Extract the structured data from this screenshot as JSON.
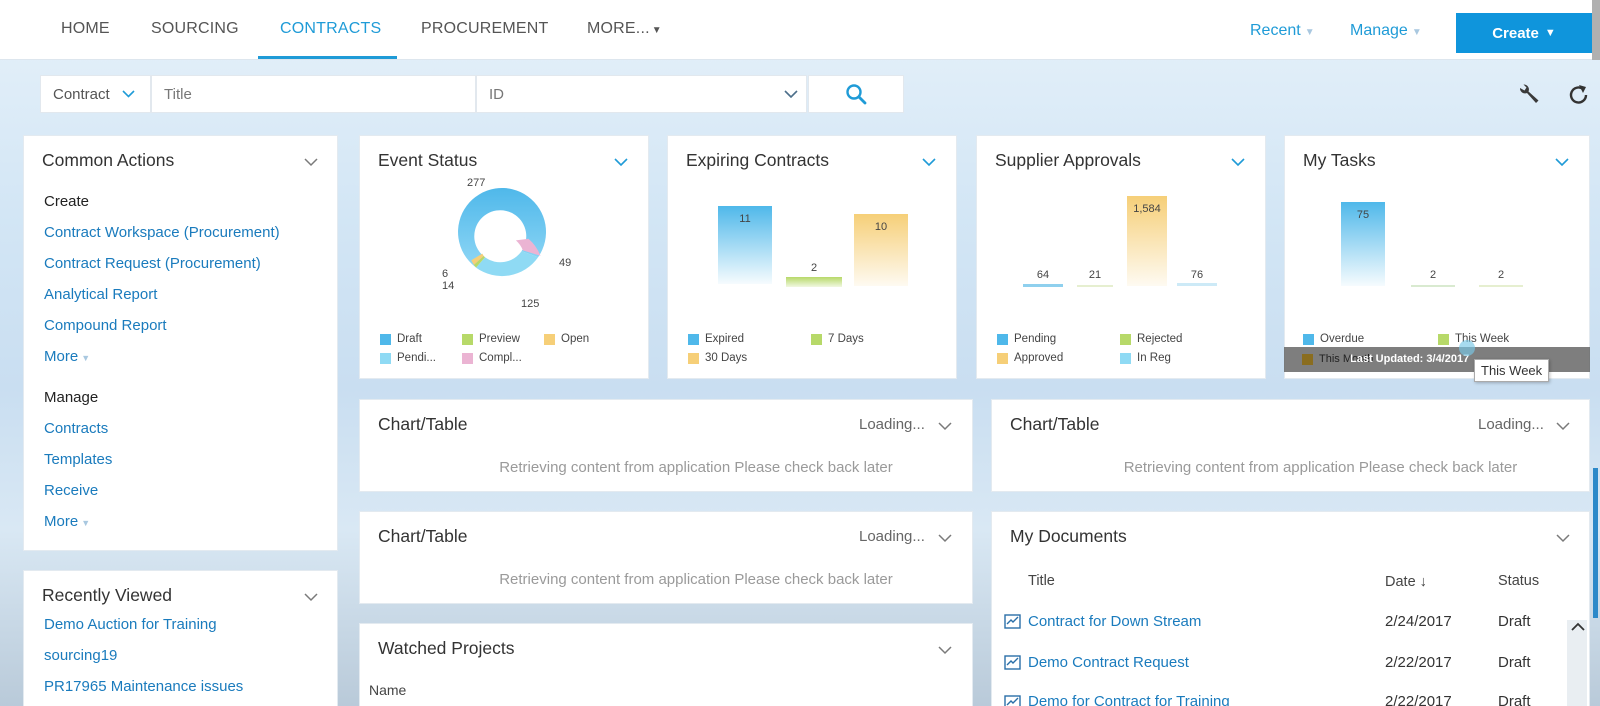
{
  "nav": {
    "tabs": [
      {
        "label": "HOME"
      },
      {
        "label": "SOURCING"
      },
      {
        "label": "CONTRACTS"
      },
      {
        "label": "PROCUREMENT"
      },
      {
        "label": "MORE..."
      }
    ],
    "active_tab": "CONTRACTS",
    "recent_label": "Recent",
    "manage_label": "Manage",
    "create_label": "Create",
    "accent_color": "#1f9bd7"
  },
  "search": {
    "type_value": "Contract",
    "title_placeholder": "Title",
    "id_placeholder": "ID",
    "search_icon": "search-icon"
  },
  "tools": {
    "wrench_icon": "wrench-icon",
    "refresh_icon": "refresh-icon"
  },
  "common_actions": {
    "title": "Common Actions",
    "create_heading": "Create",
    "create_items": [
      "Contract Workspace (Procurement)",
      "Contract Request (Procurement)",
      "Analytical Report",
      "Compound Report",
      "More"
    ],
    "manage_heading": "Manage",
    "manage_items": [
      "Contracts",
      "Templates",
      "Receive",
      "More"
    ]
  },
  "recently_viewed": {
    "title": "Recently Viewed",
    "items": [
      "Demo Auction for Training",
      "sourcing19",
      "PR17965 Maintenance issues"
    ]
  },
  "event_status": {
    "title": "Event Status",
    "labels": {
      "top": "277",
      "right": "49",
      "bottom": "125",
      "left1": "6",
      "left2": "14"
    },
    "legend": [
      "Draft",
      "Preview",
      "Open",
      "Pendi...",
      "Compl..."
    ],
    "colors": [
      "#4fb8ea",
      "#b7d969",
      "#f6cf78",
      "#8fdaf4",
      "#ebb4d3"
    ]
  },
  "expiring_contracts": {
    "title": "Expiring Contracts",
    "values": [
      "11",
      "2",
      "10"
    ],
    "legend": [
      "Expired",
      "7 Days",
      "30 Days"
    ],
    "colors": [
      "#4fb8ea",
      "#b7d969",
      "#f6cf78"
    ]
  },
  "supplier_approvals": {
    "title": "Supplier Approvals",
    "values": [
      "64",
      "21",
      "1,584",
      "76"
    ],
    "legend": [
      "Pending",
      "Rejected",
      "Approved",
      "In Reg"
    ],
    "colors": [
      "#4fb8ea",
      "#b7d969",
      "#f6cf78",
      "#8fdaf4"
    ]
  },
  "my_tasks": {
    "title": "My Tasks",
    "values": [
      "75",
      "2",
      "2"
    ],
    "legend": [
      "Overdue",
      "This Week",
      "This Month"
    ],
    "colors": [
      "#4fb8ea",
      "#b7d969",
      "#8a6d1f"
    ],
    "last_updated": "Last Updated: 3/4/2017",
    "tooltip": "This Week"
  },
  "chart_tables": [
    {
      "title": "Chart/Table",
      "loading": "Loading...",
      "message": "Retrieving content from application  Please check back later"
    },
    {
      "title": "Chart/Table",
      "loading": "Loading...",
      "message": "Retrieving content from application  Please check back later"
    },
    {
      "title": "Chart/Table",
      "loading": "Loading...",
      "message": "Retrieving content from application  Please check back later"
    }
  ],
  "watched_projects": {
    "title": "Watched Projects",
    "col_name": "Name"
  },
  "my_documents": {
    "title": "My Documents",
    "columns": [
      "Title",
      "Date ↓",
      "Status"
    ],
    "rows": [
      {
        "title": "Contract for Down Stream",
        "date": "2/24/2017",
        "status": "Draft"
      },
      {
        "title": "Demo Contract Request",
        "date": "2/22/2017",
        "status": "Draft"
      },
      {
        "title": "Demo for Contract for Training",
        "date": "2/22/2017",
        "status": "Draft"
      }
    ]
  }
}
